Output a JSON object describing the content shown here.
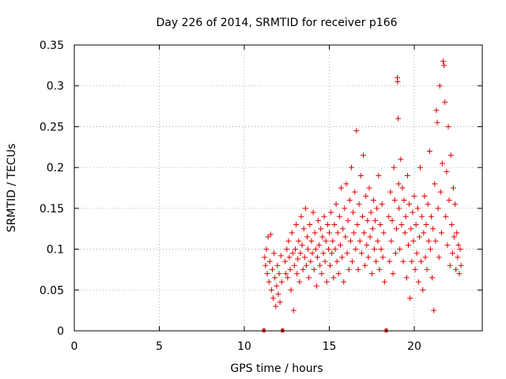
{
  "chart_data": {
    "type": "scatter",
    "title": "Day 226 of 2014, SRMTID for receiver p166",
    "xlabel": "GPS time / hours",
    "ylabel": "SRMTID / TECUs",
    "xlim": [
      0,
      24
    ],
    "ylim": [
      0,
      0.35
    ],
    "xticks": [
      0,
      5,
      10,
      15,
      20
    ],
    "yticks": [
      0,
      0.05,
      0.1,
      0.15,
      0.2,
      0.25,
      0.3,
      0.35
    ],
    "xtick_labels": [
      "0",
      "5",
      "10",
      "15",
      "20"
    ],
    "ytick_labels": [
      "0",
      "0.05",
      "0.1",
      "0.15",
      "0.2",
      "0.25",
      "0.3",
      "0.35"
    ],
    "grid": true,
    "marker": "+",
    "color": "#e00000",
    "gap_markers_x": [
      11.15,
      12.25,
      18.35
    ],
    "series": [
      {
        "name": "SRMTID",
        "points": [
          [
            11.2,
            0.09
          ],
          [
            11.25,
            0.08
          ],
          [
            11.3,
            0.1
          ],
          [
            11.35,
            0.07
          ],
          [
            11.4,
            0.115
          ],
          [
            11.45,
            0.06
          ],
          [
            11.5,
            0.085
          ],
          [
            11.55,
            0.118
          ],
          [
            11.6,
            0.05
          ],
          [
            11.65,
            0.075
          ],
          [
            11.7,
            0.04
          ],
          [
            11.75,
            0.095
          ],
          [
            11.8,
            0.065
          ],
          [
            11.85,
            0.03
          ],
          [
            11.9,
            0.055
          ],
          [
            11.95,
            0.08
          ],
          [
            12.0,
            0.045
          ],
          [
            12.05,
            0.07
          ],
          [
            12.1,
            0.035
          ],
          [
            12.15,
            0.092
          ],
          [
            12.2,
            0.06
          ],
          [
            12.4,
            0.085
          ],
          [
            12.45,
            0.07
          ],
          [
            12.5,
            0.1
          ],
          [
            12.55,
            0.065
          ],
          [
            12.6,
            0.11
          ],
          [
            12.65,
            0.09
          ],
          [
            12.7,
            0.075
          ],
          [
            12.75,
            0.05
          ],
          [
            12.8,
            0.12
          ],
          [
            12.85,
            0.095
          ],
          [
            12.9,
            0.025
          ],
          [
            12.95,
            0.08
          ],
          [
            13.0,
            0.1
          ],
          [
            13.05,
            0.13
          ],
          [
            13.1,
            0.07
          ],
          [
            13.15,
            0.088
          ],
          [
            13.2,
            0.11
          ],
          [
            13.25,
            0.06
          ],
          [
            13.3,
            0.095
          ],
          [
            13.35,
            0.14
          ],
          [
            13.4,
            0.105
          ],
          [
            13.45,
            0.075
          ],
          [
            13.5,
            0.125
          ],
          [
            13.55,
            0.09
          ],
          [
            13.6,
            0.15
          ],
          [
            13.65,
            0.08
          ],
          [
            13.7,
            0.115
          ],
          [
            13.75,
            0.1
          ],
          [
            13.8,
            0.065
          ],
          [
            13.85,
            0.13
          ],
          [
            13.9,
            0.085
          ],
          [
            13.95,
            0.11
          ],
          [
            14.0,
            0.095
          ],
          [
            14.05,
            0.145
          ],
          [
            14.1,
            0.075
          ],
          [
            14.15,
            0.12
          ],
          [
            14.2,
            0.1
          ],
          [
            14.25,
            0.055
          ],
          [
            14.3,
            0.09
          ],
          [
            14.35,
            0.135
          ],
          [
            14.4,
            0.105
          ],
          [
            14.45,
            0.08
          ],
          [
            14.5,
            0.125
          ],
          [
            14.55,
            0.07
          ],
          [
            14.6,
            0.115
          ],
          [
            14.65,
            0.095
          ],
          [
            14.7,
            0.14
          ],
          [
            14.75,
            0.085
          ],
          [
            14.8,
            0.11
          ],
          [
            14.85,
            0.06
          ],
          [
            14.9,
            0.13
          ],
          [
            14.95,
            0.1
          ],
          [
            15.0,
            0.12
          ],
          [
            15.05,
            0.08
          ],
          [
            15.1,
            0.145
          ],
          [
            15.15,
            0.095
          ],
          [
            15.2,
            0.11
          ],
          [
            15.25,
            0.065
          ],
          [
            15.3,
            0.13
          ],
          [
            15.35,
            0.1
          ],
          [
            15.4,
            0.155
          ],
          [
            15.45,
            0.085
          ],
          [
            15.5,
            0.12
          ],
          [
            15.55,
            0.07
          ],
          [
            15.6,
            0.14
          ],
          [
            15.65,
            0.105
          ],
          [
            15.7,
            0.175
          ],
          [
            15.75,
            0.09
          ],
          [
            15.8,
            0.125
          ],
          [
            15.85,
            0.06
          ],
          [
            15.9,
            0.15
          ],
          [
            15.95,
            0.115
          ],
          [
            16.0,
            0.18
          ],
          [
            16.05,
            0.095
          ],
          [
            16.1,
            0.135
          ],
          [
            16.15,
            0.075
          ],
          [
            16.2,
            0.16
          ],
          [
            16.25,
            0.11
          ],
          [
            16.3,
            0.2
          ],
          [
            16.35,
            0.085
          ],
          [
            16.4,
            0.145
          ],
          [
            16.45,
            0.12
          ],
          [
            16.5,
            0.17
          ],
          [
            16.55,
            0.1
          ],
          [
            16.6,
            0.245
          ],
          [
            16.65,
            0.13
          ],
          [
            16.7,
            0.075
          ],
          [
            16.75,
            0.155
          ],
          [
            16.8,
            0.11
          ],
          [
            16.85,
            0.19
          ],
          [
            16.9,
            0.095
          ],
          [
            16.95,
            0.14
          ],
          [
            17.0,
            0.215
          ],
          [
            17.05,
            0.12
          ],
          [
            17.1,
            0.08
          ],
          [
            17.15,
            0.165
          ],
          [
            17.2,
            0.105
          ],
          [
            17.25,
            0.135
          ],
          [
            17.3,
            0.09
          ],
          [
            17.35,
            0.175
          ],
          [
            17.4,
            0.115
          ],
          [
            17.45,
            0.145
          ],
          [
            17.5,
            0.07
          ],
          [
            17.55,
            0.125
          ],
          [
            17.6,
            0.16
          ],
          [
            17.65,
            0.1
          ],
          [
            17.7,
            0.135
          ],
          [
            17.75,
            0.085
          ],
          [
            17.8,
            0.15
          ],
          [
            17.85,
            0.11
          ],
          [
            17.9,
            0.19
          ],
          [
            17.95,
            0.075
          ],
          [
            18.0,
            0.13
          ],
          [
            18.05,
            0.1
          ],
          [
            18.1,
            0.155
          ],
          [
            18.15,
            0.09
          ],
          [
            18.2,
            0.12
          ],
          [
            18.25,
            0.06
          ],
          [
            18.5,
            0.14
          ],
          [
            18.55,
            0.085
          ],
          [
            18.6,
            0.17
          ],
          [
            18.65,
            0.11
          ],
          [
            18.7,
            0.135
          ],
          [
            18.75,
            0.07
          ],
          [
            18.8,
            0.2
          ],
          [
            18.85,
            0.16
          ],
          [
            18.9,
            0.095
          ],
          [
            18.95,
            0.125
          ],
          [
            19.0,
            0.31
          ],
          [
            19.02,
            0.305
          ],
          [
            19.05,
            0.26
          ],
          [
            19.08,
            0.18
          ],
          [
            19.1,
            0.15
          ],
          [
            19.15,
            0.1
          ],
          [
            19.2,
            0.21
          ],
          [
            19.25,
            0.13
          ],
          [
            19.3,
            0.175
          ],
          [
            19.35,
            0.085
          ],
          [
            19.4,
            0.16
          ],
          [
            19.45,
            0.12
          ],
          [
            19.5,
            0.14
          ],
          [
            19.55,
            0.065
          ],
          [
            19.6,
            0.19
          ],
          [
            19.65,
            0.105
          ],
          [
            19.7,
            0.155
          ],
          [
            19.75,
            0.04
          ],
          [
            19.8,
            0.125
          ],
          [
            19.85,
            0.085
          ],
          [
            19.9,
            0.145
          ],
          [
            19.95,
            0.11
          ],
          [
            20.0,
            0.165
          ],
          [
            20.05,
            0.075
          ],
          [
            20.1,
            0.13
          ],
          [
            20.15,
            0.095
          ],
          [
            20.2,
            0.15
          ],
          [
            20.25,
            0.06
          ],
          [
            20.3,
            0.115
          ],
          [
            20.35,
            0.2
          ],
          [
            20.4,
            0.085
          ],
          [
            20.45,
            0.14
          ],
          [
            20.5,
            0.05
          ],
          [
            20.55,
            0.12
          ],
          [
            20.6,
            0.165
          ],
          [
            20.65,
            0.09
          ],
          [
            20.7,
            0.13
          ],
          [
            20.75,
            0.075
          ],
          [
            20.8,
            0.155
          ],
          [
            20.85,
            0.11
          ],
          [
            20.9,
            0.22
          ],
          [
            20.95,
            0.1
          ],
          [
            21.0,
            0.14
          ],
          [
            21.05,
            0.065
          ],
          [
            21.1,
            0.125
          ],
          [
            21.15,
            0.025
          ],
          [
            21.2,
            0.18
          ],
          [
            21.25,
            0.11
          ],
          [
            21.3,
            0.27
          ],
          [
            21.35,
            0.255
          ],
          [
            21.4,
            0.15
          ],
          [
            21.45,
            0.09
          ],
          [
            21.5,
            0.3
          ],
          [
            21.55,
            0.17
          ],
          [
            21.6,
            0.12
          ],
          [
            21.65,
            0.205
          ],
          [
            21.7,
            0.33
          ],
          [
            21.75,
            0.325
          ],
          [
            21.8,
            0.28
          ],
          [
            21.85,
            0.14
          ],
          [
            21.9,
            0.195
          ],
          [
            21.95,
            0.105
          ],
          [
            22.0,
            0.25
          ],
          [
            22.05,
            0.16
          ],
          [
            22.1,
            0.08
          ],
          [
            22.15,
            0.215
          ],
          [
            22.2,
            0.13
          ],
          [
            22.25,
            0.095
          ],
          [
            22.3,
            0.175
          ],
          [
            22.35,
            0.115
          ],
          [
            22.4,
            0.155
          ],
          [
            22.45,
            0.075
          ],
          [
            22.5,
            0.12
          ],
          [
            22.55,
            0.09
          ],
          [
            22.6,
            0.105
          ],
          [
            22.65,
            0.07
          ],
          [
            22.7,
            0.1
          ],
          [
            22.75,
            0.08
          ]
        ]
      }
    ]
  }
}
